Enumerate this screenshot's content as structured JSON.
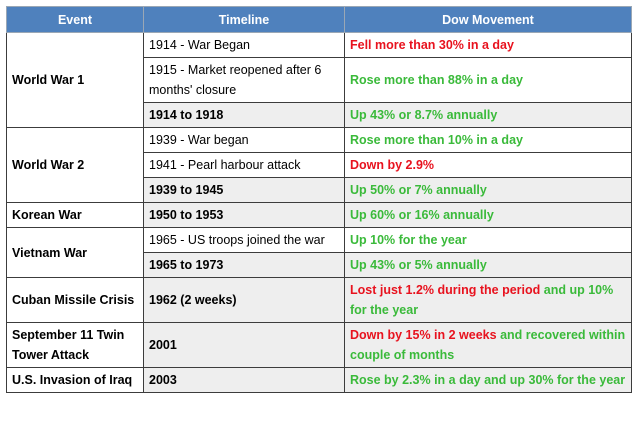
{
  "colors": {
    "header_bg": "#4f81bd",
    "down": "#e8121e",
    "up": "#3aba3a",
    "summary_bg": "#eeeeee"
  },
  "headers": {
    "event": "Event",
    "timeline": "Timeline",
    "dow": "Dow Movement"
  },
  "ww1": {
    "event": "World War 1",
    "r1": {
      "timeline": "1914 - War Began",
      "dow": "Fell more than 30% in a day"
    },
    "r2": {
      "timeline": "1915 - Market reopened after 6 months' closure",
      "dow": "Rose more than 88% in a day"
    },
    "r3": {
      "timeline": "1914 to 1918",
      "dow": "Up 43% or 8.7% annually"
    }
  },
  "ww2": {
    "event": "World War 2",
    "r1": {
      "timeline": "1939 - War began",
      "dow": "Rose more than 10% in a day"
    },
    "r2": {
      "timeline": "1941 - Pearl harbour attack",
      "dow": "Down by 2.9%"
    },
    "r3": {
      "timeline": "1939 to 1945",
      "dow": "Up 50% or 7% annually"
    }
  },
  "korea": {
    "event": "Korean War",
    "r1": {
      "timeline": "1950 to 1953",
      "dow": "Up 60% or 16% annually"
    }
  },
  "vietnam": {
    "event": "Vietnam War",
    "r1": {
      "timeline": "1965 - US troops joined the war",
      "dow": "Up 10% for the year"
    },
    "r2": {
      "timeline": "1965 to 1973",
      "dow": "Up 43% or 5% annually"
    }
  },
  "cuba": {
    "event": "Cuban Missile Crisis",
    "r1": {
      "timeline": "1962 (2 weeks)",
      "dow_red": "Lost just 1.2% during the period",
      "dow_green": "and up 10% for the year"
    }
  },
  "sept11": {
    "event": "September 11 Twin Tower Attack",
    "r1": {
      "timeline": "2001",
      "dow_red": "Down by 15% in 2 weeks",
      "dow_green": "and recovered within couple of months"
    }
  },
  "iraq": {
    "event": "U.S. Invasion of Iraq",
    "r1": {
      "timeline": "2003",
      "dow": "Rose by 2.3% in a day and up 30% for the year"
    }
  }
}
